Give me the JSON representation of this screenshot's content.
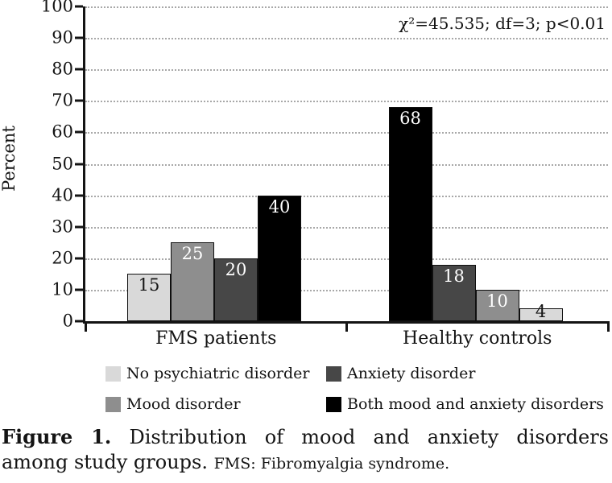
{
  "chart_data": {
    "type": "bar",
    "title": "",
    "ylabel": "Percent",
    "xlabel": "",
    "ylim": [
      0,
      100
    ],
    "ytick_step": 10,
    "grid": "dotted-horizontal",
    "legend_position": "bottom",
    "annotation": "χ²=45.535; df=3; p<0.01",
    "categories": [
      "FMS patients",
      "Healthy controls"
    ],
    "series": [
      {
        "name": "No psychiatric disorder",
        "color_key": "light",
        "values": [
          15,
          4
        ]
      },
      {
        "name": "Mood disorder",
        "color_key": "medium",
        "values": [
          25,
          10
        ]
      },
      {
        "name": "Anxiety disorder",
        "color_key": "dark",
        "values": [
          20,
          18
        ]
      },
      {
        "name": "Both mood and anxiety disorders",
        "color_key": "black",
        "values": [
          40,
          68
        ]
      }
    ],
    "bar_order_as_drawn": [
      [
        "light",
        "medium",
        "dark",
        "black"
      ],
      [
        "black",
        "dark",
        "medium",
        "light"
      ]
    ],
    "legend_order": [
      "light",
      "dark",
      "medium",
      "black"
    ]
  },
  "colors": {
    "light": "#d9d9d9",
    "medium": "#8e8e8e",
    "dark": "#474747",
    "black": "#000000",
    "axis": "#141414",
    "grid": "#a8a8a8",
    "label_on_light": "#141414",
    "label_on_dark": "#ffffff"
  },
  "caption": {
    "figure_label": "Figure 1.",
    "line1_text": "Distribution of mood and anxiety disorders",
    "line2_text": "among study groups.",
    "note": "FMS: Fibromyalgia syndrome."
  }
}
